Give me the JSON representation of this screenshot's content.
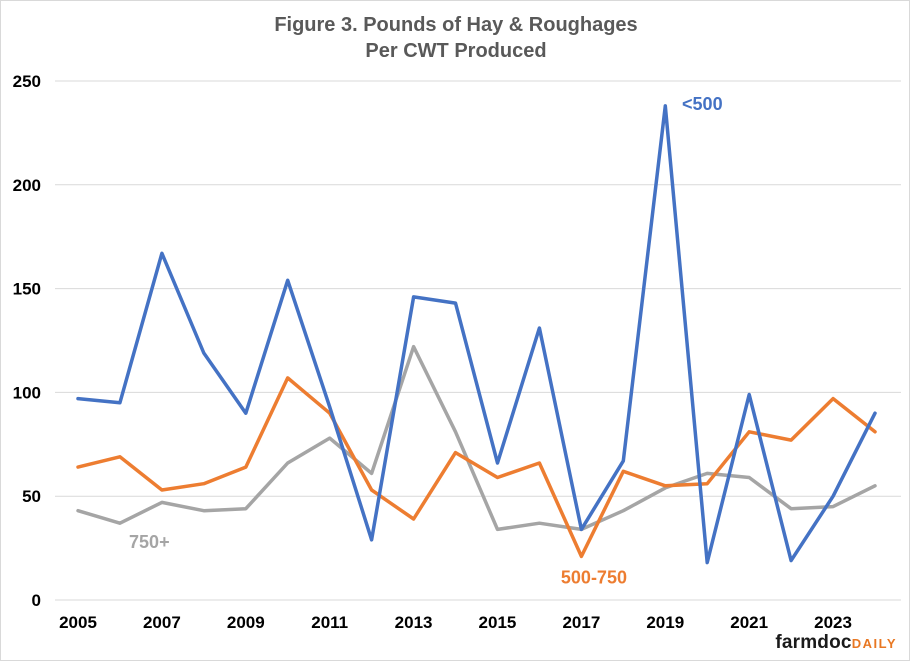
{
  "chart_data": {
    "type": "line",
    "title": [
      "Figure  3. Pounds of Hay & Roughages",
      "Per CWT Produced"
    ],
    "x": [
      2005,
      2006,
      2007,
      2008,
      2009,
      2010,
      2011,
      2012,
      2013,
      2014,
      2015,
      2016,
      2017,
      2018,
      2019,
      2020,
      2021,
      2022,
      2023,
      2024
    ],
    "x_tick_labels": [
      "2005",
      "2007",
      "2009",
      "2011",
      "2013",
      "2015",
      "2017",
      "2019",
      "2021",
      "2023"
    ],
    "y_tick_labels": [
      "0",
      "50",
      "100",
      "150",
      "200",
      "250"
    ],
    "ylim": [
      0,
      250
    ],
    "xlabel": "",
    "ylabel": "",
    "grid": "horizontal",
    "legend": "none (series labeled directly on chart)",
    "series": [
      {
        "name": "<500",
        "color": "#4472c4",
        "values": [
          97,
          95,
          167,
          119,
          90,
          154,
          93,
          29,
          146,
          143,
          66,
          131,
          34,
          67,
          238,
          18,
          99,
          19,
          50,
          90
        ]
      },
      {
        "name": "500-750",
        "color": "#ed7d31",
        "values": [
          64,
          69,
          53,
          56,
          64,
          107,
          90,
          53,
          39,
          71,
          59,
          66,
          21,
          62,
          55,
          56,
          81,
          77,
          97,
          81
        ]
      },
      {
        "name": "750+",
        "color": "#a5a5a5",
        "values": [
          43,
          37,
          47,
          43,
          44,
          66,
          78,
          61,
          122,
          81,
          34,
          37,
          34,
          43,
          54,
          61,
          59,
          44,
          45,
          55
        ]
      }
    ]
  },
  "logo": {
    "main": "farmdoc",
    "sub": "DAILY"
  }
}
